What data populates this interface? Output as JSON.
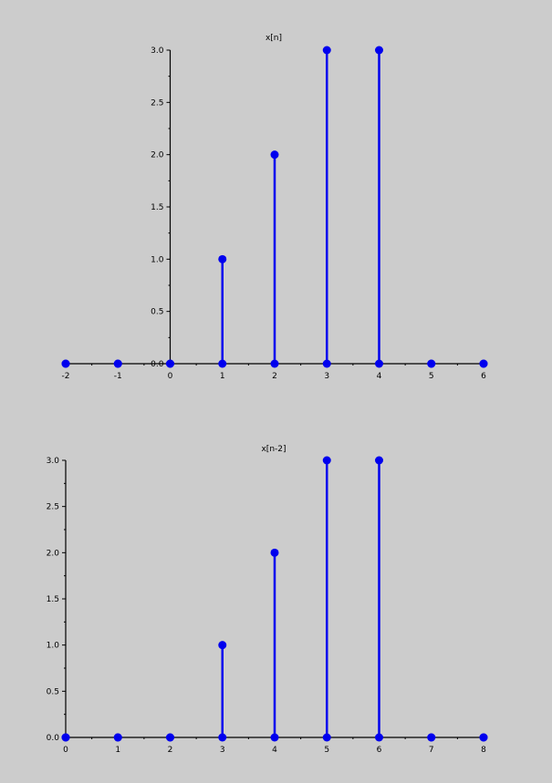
{
  "colors": {
    "background": "#cccccc",
    "stem": "#0000ee",
    "axis": "#000000"
  },
  "chart_data": [
    {
      "type": "stem",
      "title": "x[n]",
      "xlabel": "",
      "ylabel": "",
      "x": [
        -2,
        -1,
        0,
        1,
        2,
        3,
        4,
        5,
        6
      ],
      "values": [
        0,
        0,
        0,
        1,
        2,
        3,
        3,
        0,
        0
      ],
      "xlim": [
        -2,
        6
      ],
      "ylim": [
        0,
        3
      ],
      "xticks": [
        "-2",
        "-1",
        "0",
        "1",
        "2",
        "3",
        "4",
        "5",
        "6"
      ],
      "yticks": [
        "0.0",
        "0.5",
        "1.0",
        "1.5",
        "2.0",
        "2.5",
        "3.0"
      ],
      "y_axis_at_x": 0,
      "grid": false
    },
    {
      "type": "stem",
      "title": "x[n-2]",
      "xlabel": "",
      "ylabel": "",
      "x": [
        0,
        1,
        2,
        3,
        4,
        5,
        6,
        7,
        8
      ],
      "values": [
        0,
        0,
        0,
        1,
        2,
        3,
        3,
        0,
        0
      ],
      "xlim": [
        0,
        8
      ],
      "ylim": [
        0,
        3
      ],
      "xticks": [
        "0",
        "1",
        "2",
        "3",
        "4",
        "5",
        "6",
        "7",
        "8"
      ],
      "yticks": [
        "0.0",
        "0.5",
        "1.0",
        "1.5",
        "2.0",
        "2.5",
        "3.0"
      ],
      "y_axis_at_x": 0,
      "grid": false
    }
  ]
}
